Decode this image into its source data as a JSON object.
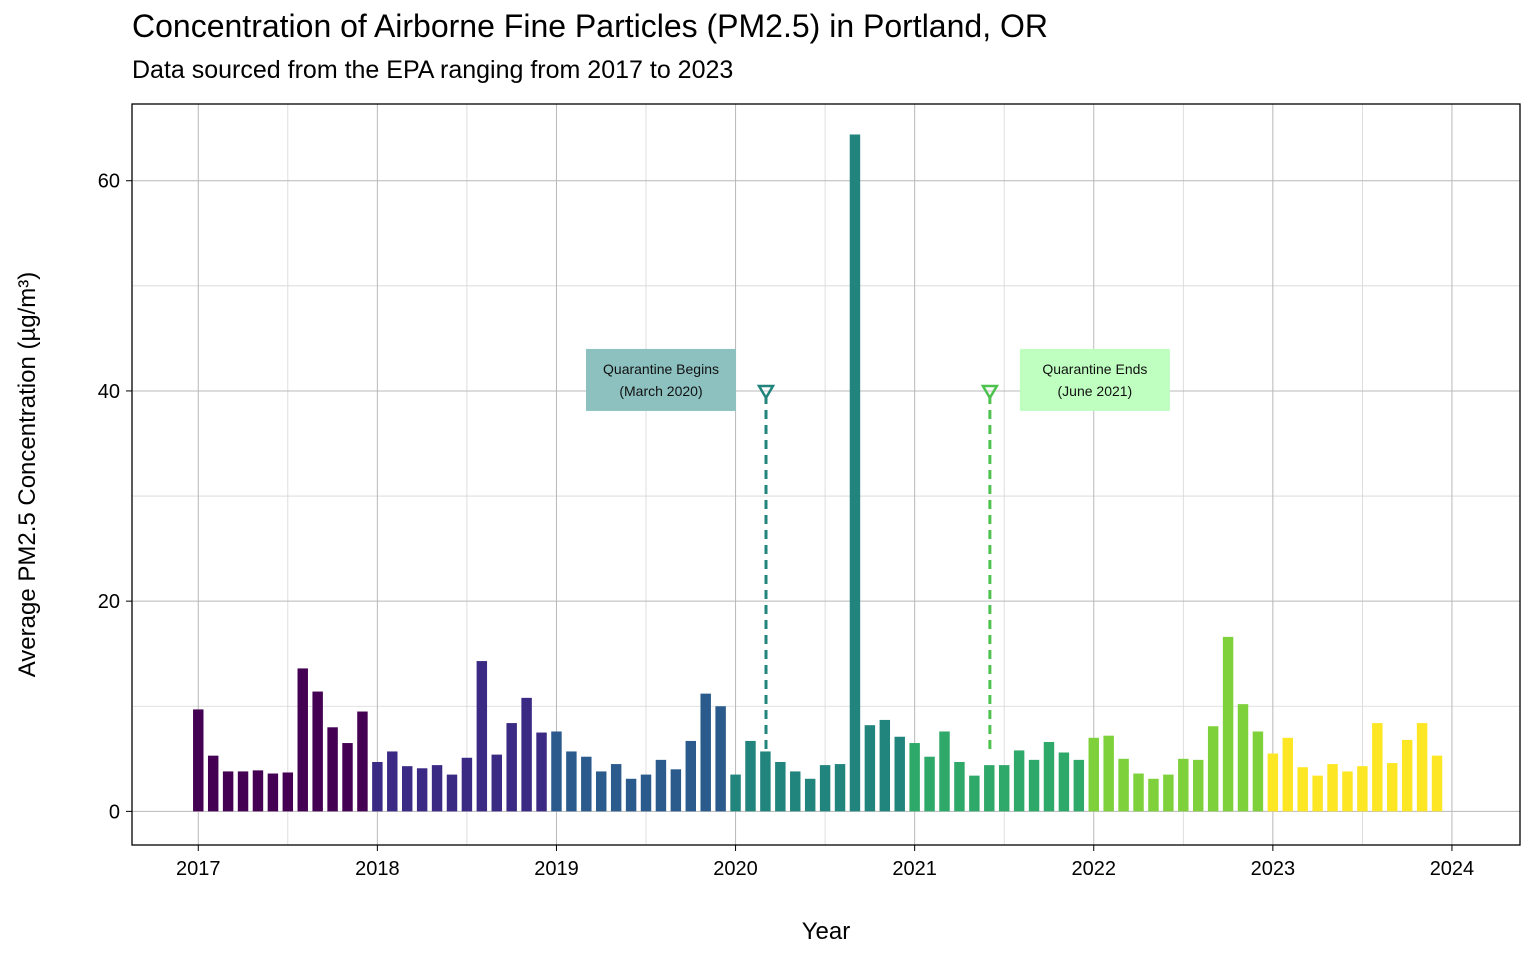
{
  "chart_data": {
    "type": "bar",
    "title": "Concentration of Airborne Fine Particles (PM2.5) in Portland, OR",
    "subtitle": "Data sourced from the EPA ranging from 2017 to 2023",
    "xlabel": "Year",
    "ylabel": "Average PM2.5 Concentration (µg/m³)",
    "xlim": [
      2016.63,
      2024.38
    ],
    "ylim": [
      -3.2,
      67.3
    ],
    "x_ticks": [
      2017,
      2018,
      2019,
      2020,
      2021,
      2022,
      2023,
      2024
    ],
    "x_tick_labels": [
      "2017",
      "2018",
      "2019",
      "2020",
      "2021",
      "2022",
      "2023",
      "2024"
    ],
    "y_ticks": [
      0,
      20,
      40,
      60
    ],
    "y_tick_labels": [
      "0",
      "20",
      "40",
      "60"
    ],
    "grid": true,
    "legend": "none",
    "series": [
      {
        "year": 2017,
        "color": "#440154",
        "values": [
          9.7,
          5.3,
          3.8,
          3.8,
          3.9,
          3.6,
          3.7,
          13.6,
          11.4,
          8.0,
          6.5,
          9.5
        ]
      },
      {
        "year": 2018,
        "color": "#3B2A84",
        "values": [
          4.7,
          5.7,
          4.3,
          4.1,
          4.4,
          3.5,
          5.1,
          14.3,
          5.4,
          8.4,
          10.8,
          7.5
        ]
      },
      {
        "year": 2019,
        "color": "#2A5B8C",
        "values": [
          7.6,
          5.7,
          5.2,
          3.8,
          4.5,
          3.1,
          3.5,
          4.9,
          4.0,
          6.7,
          11.2,
          10.0
        ]
      },
      {
        "year": 2020,
        "color": "#21847D",
        "values": [
          3.5,
          6.7,
          5.7,
          4.7,
          3.8,
          3.1,
          4.4,
          4.5,
          64.4,
          8.2,
          8.7,
          7.1
        ]
      },
      {
        "year": 2021,
        "color": "#2FA969",
        "values": [
          6.5,
          5.2,
          7.6,
          4.7,
          3.4,
          4.4,
          4.4,
          5.8,
          4.9,
          6.6,
          5.6,
          4.9
        ]
      },
      {
        "year": 2022,
        "color": "#7ED13A",
        "values": [
          7.0,
          7.2,
          5.0,
          3.6,
          3.1,
          3.5,
          5.0,
          4.9,
          8.1,
          16.6,
          10.2,
          7.6
        ]
      },
      {
        "year": 2023,
        "color": "#FDE725",
        "values": [
          5.5,
          7.0,
          4.2,
          3.4,
          4.5,
          3.8,
          4.3,
          8.4,
          4.6,
          6.8,
          8.4,
          5.3
        ]
      }
    ],
    "annotations": [
      {
        "name": "quarantine-begins",
        "lines": [
          "Quarantine Begins",
          "(March 2020)"
        ],
        "x": 2020.17,
        "y": 40,
        "marker": "triangle-down",
        "line_color": "#21847D",
        "label_fill": "#8CC1C0",
        "label_side": "left"
      },
      {
        "name": "quarantine-ends",
        "lines": [
          "Quarantine Ends",
          "(June 2021)"
        ],
        "x": 2021.42,
        "y": 40,
        "marker": "triangle-down",
        "line_color": "#4EC24E",
        "label_fill": "#BFFFC0",
        "label_side": "right"
      }
    ]
  }
}
